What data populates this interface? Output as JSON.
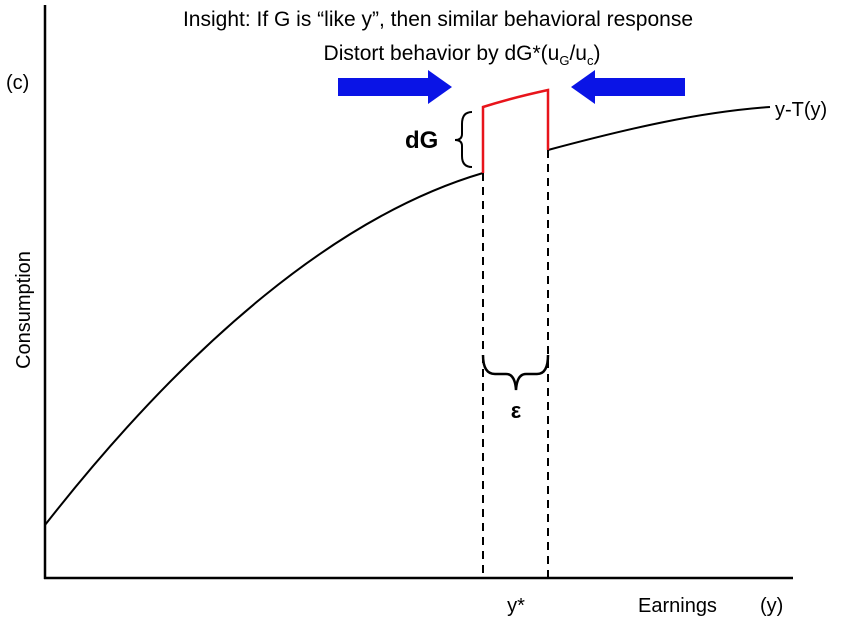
{
  "title": "Insight: If G is “like y”, then similar behavioral response",
  "subtitle": {
    "parts": [
      "Distort behavior by dG*(u",
      "G",
      "/u",
      "c",
      ")"
    ]
  },
  "y_axis": {
    "label": "Consumption",
    "unit": "(c)"
  },
  "x_axis": {
    "label": "Earnings",
    "unit": "(y)",
    "marker": "y*"
  },
  "curve_label": "y-T(y)",
  "jump_label": "dG",
  "width_label": "ε"
}
